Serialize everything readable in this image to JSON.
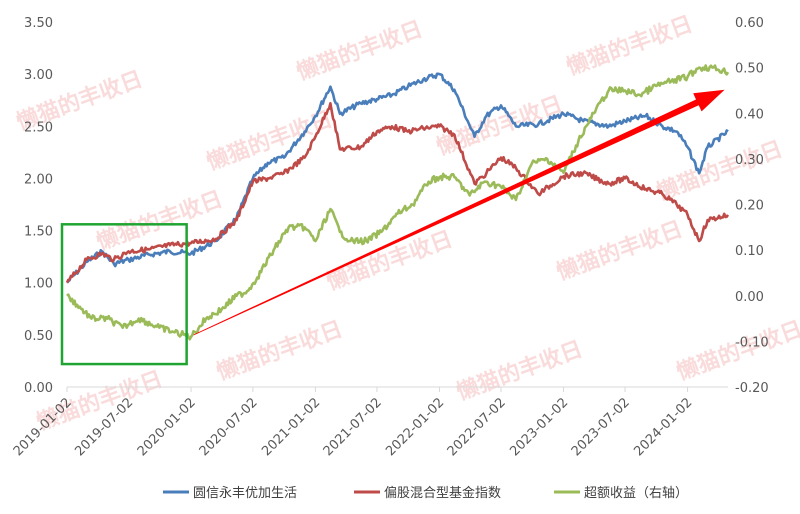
{
  "watermark": {
    "text": "懒猫的丰收日"
  },
  "chart_data": {
    "type": "line",
    "title": "",
    "xlabel": "",
    "ylabel": "",
    "ylabel_right": "",
    "x_ticks": [
      "2019-01-02",
      "2019-07-02",
      "2020-01-02",
      "2020-07-02",
      "2021-01-02",
      "2021-07-02",
      "2022-01-02",
      "2022-07-02",
      "2023-01-02",
      "2023-07-02",
      "2024-01-02"
    ],
    "x_range": [
      "2019-01-02",
      "2024-04-30"
    ],
    "y_left": {
      "min": 0,
      "max": 3.5,
      "ticks": [
        "0.00",
        "0.50",
        "1.00",
        "1.50",
        "2.00",
        "2.50",
        "3.00",
        "3.50"
      ]
    },
    "y_right": {
      "min": -0.2,
      "max": 0.6,
      "ticks": [
        "-0.20",
        "-0.10",
        "0.00",
        "0.10",
        "0.20",
        "0.30",
        "0.40",
        "0.50",
        "0.60"
      ]
    },
    "grid": false,
    "legend_position": "bottom",
    "series": [
      {
        "name": "圆信永丰优加生活",
        "axis": "left",
        "color": "#4a7ebb",
        "x": [
          "2019-01-02",
          "2019-03-01",
          "2019-04-15",
          "2019-05-20",
          "2019-07-02",
          "2019-09-02",
          "2019-11-01",
          "2020-01-02",
          "2020-03-15",
          "2020-05-15",
          "2020-07-02",
          "2020-08-15",
          "2020-10-01",
          "2020-12-01",
          "2021-01-02",
          "2021-02-15",
          "2021-03-15",
          "2021-05-15",
          "2021-07-02",
          "2021-08-15",
          "2021-10-01",
          "2021-11-15",
          "2022-01-02",
          "2022-02-15",
          "2022-04-15",
          "2022-05-20",
          "2022-07-02",
          "2022-08-15",
          "2022-10-20",
          "2023-01-02",
          "2023-03-01",
          "2023-05-15",
          "2023-07-02",
          "2023-09-01",
          "2023-10-20",
          "2023-12-01",
          "2024-01-02",
          "2024-02-05",
          "2024-03-01",
          "2024-04-30"
        ],
        "values": [
          1.0,
          1.2,
          1.3,
          1.18,
          1.22,
          1.27,
          1.3,
          1.28,
          1.4,
          1.62,
          2.0,
          2.15,
          2.2,
          2.45,
          2.6,
          2.88,
          2.62,
          2.72,
          2.76,
          2.8,
          2.88,
          2.95,
          3.0,
          2.85,
          2.4,
          2.6,
          2.7,
          2.5,
          2.52,
          2.62,
          2.55,
          2.5,
          2.55,
          2.6,
          2.5,
          2.45,
          2.3,
          2.05,
          2.3,
          2.45
        ]
      },
      {
        "name": "偏股混合型基金指数",
        "axis": "left",
        "color": "#be4b48",
        "x": [
          "2019-01-02",
          "2019-03-01",
          "2019-04-15",
          "2019-05-20",
          "2019-07-02",
          "2019-09-02",
          "2019-11-01",
          "2020-01-02",
          "2020-03-15",
          "2020-05-15",
          "2020-07-02",
          "2020-08-15",
          "2020-10-01",
          "2020-12-01",
          "2021-01-02",
          "2021-02-15",
          "2021-03-15",
          "2021-05-15",
          "2021-07-02",
          "2021-08-15",
          "2021-10-01",
          "2021-11-15",
          "2022-01-02",
          "2022-02-15",
          "2022-04-15",
          "2022-05-20",
          "2022-07-02",
          "2022-08-15",
          "2022-10-20",
          "2023-01-02",
          "2023-03-01",
          "2023-05-15",
          "2023-07-02",
          "2023-09-01",
          "2023-10-20",
          "2023-12-01",
          "2024-01-02",
          "2024-02-05",
          "2024-03-01",
          "2024-04-30"
        ],
        "values": [
          1.0,
          1.22,
          1.28,
          1.22,
          1.3,
          1.32,
          1.36,
          1.38,
          1.42,
          1.6,
          1.97,
          2.0,
          2.05,
          2.2,
          2.4,
          2.72,
          2.28,
          2.3,
          2.45,
          2.5,
          2.45,
          2.48,
          2.5,
          2.42,
          1.95,
          2.05,
          2.2,
          2.1,
          1.85,
          2.02,
          2.05,
          1.95,
          2.0,
          1.9,
          1.85,
          1.75,
          1.65,
          1.4,
          1.6,
          1.65
        ]
      },
      {
        "name": "超额收益（右轴）",
        "axis": "right",
        "color": "#9bbb59",
        "x": [
          "2019-01-02",
          "2019-02-01",
          "2019-03-15",
          "2019-05-01",
          "2019-06-15",
          "2019-08-01",
          "2019-10-01",
          "2019-11-15",
          "2020-01-02",
          "2020-02-15",
          "2020-04-01",
          "2020-05-15",
          "2020-06-15",
          "2020-07-15",
          "2020-09-01",
          "2020-10-15",
          "2020-12-01",
          "2021-01-02",
          "2021-02-15",
          "2021-03-15",
          "2021-04-15",
          "2021-06-01",
          "2021-07-15",
          "2021-09-01",
          "2021-10-15",
          "2021-12-01",
          "2022-01-02",
          "2022-02-15",
          "2022-04-01",
          "2022-05-15",
          "2022-07-01",
          "2022-08-15",
          "2022-10-01",
          "2022-11-15",
          "2023-01-02",
          "2023-02-15",
          "2023-04-01",
          "2023-05-15",
          "2023-07-01",
          "2023-08-15",
          "2023-10-01",
          "2023-11-15",
          "2024-01-02",
          "2024-02-05",
          "2024-03-15",
          "2024-04-30"
        ],
        "values": [
          0.0,
          -0.02,
          -0.05,
          -0.05,
          -0.07,
          -0.05,
          -0.07,
          -0.08,
          -0.09,
          -0.05,
          -0.03,
          0.0,
          0.01,
          0.04,
          0.1,
          0.15,
          0.15,
          0.12,
          0.19,
          0.14,
          0.12,
          0.12,
          0.14,
          0.18,
          0.2,
          0.25,
          0.26,
          0.26,
          0.22,
          0.25,
          0.24,
          0.21,
          0.29,
          0.3,
          0.27,
          0.34,
          0.4,
          0.45,
          0.45,
          0.44,
          0.46,
          0.47,
          0.48,
          0.5,
          0.5,
          0.49
        ]
      }
    ],
    "annotations": [
      {
        "type": "box",
        "label": "",
        "x_range": [
          "2019-01-02",
          "2019-12-20"
        ],
        "y_range": [
          0.22,
          1.56
        ],
        "axis": "left",
        "color": "#1fa431"
      },
      {
        "type": "arrow",
        "label": "",
        "from": {
          "x": "2020-01-10",
          "y": 0.5,
          "axis": "left"
        },
        "to": {
          "x": "2024-04-20",
          "y": 2.85,
          "axis": "left"
        },
        "color": "#ff0000"
      }
    ]
  },
  "legend": {
    "position": "bottom"
  }
}
